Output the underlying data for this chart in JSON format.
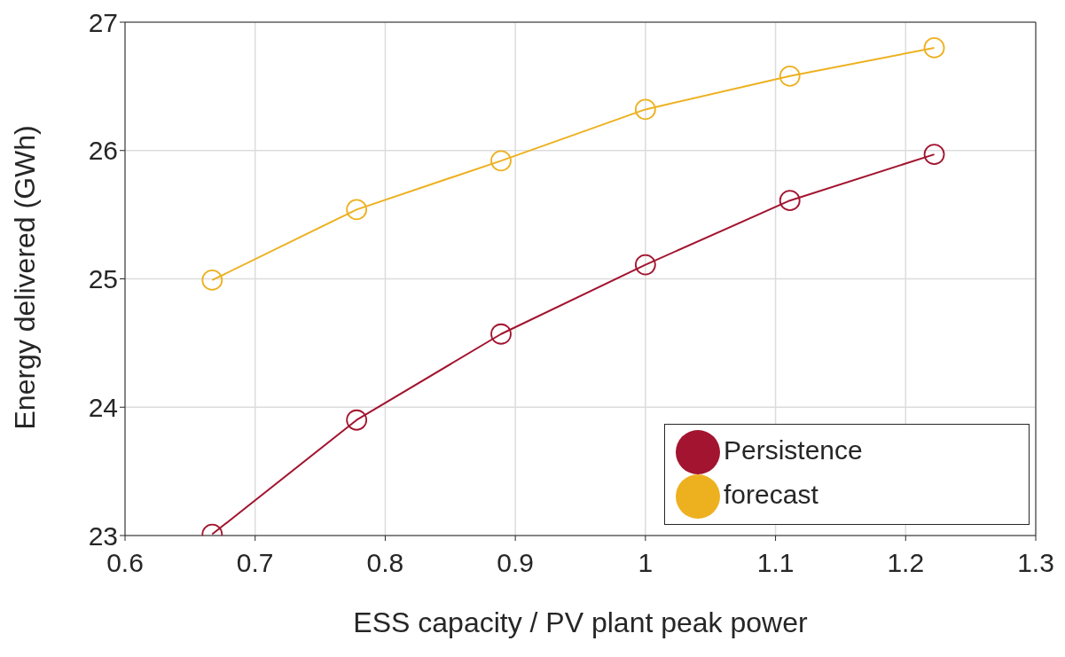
{
  "chart_data": {
    "type": "line",
    "xlabel": "ESS capacity / PV plant peak power",
    "ylabel": "Energy delivered (GWh)",
    "x": [
      0.667,
      0.778,
      0.889,
      1,
      1.111,
      1.222
    ],
    "series": [
      {
        "name": "Persistence",
        "color": "#a2142f",
        "values": [
          23.01,
          23.9,
          24.57,
          25.11,
          25.61,
          25.97
        ]
      },
      {
        "name": "forecast",
        "color": "#edb120",
        "values": [
          24.99,
          25.54,
          25.92,
          26.32,
          26.58,
          26.8
        ]
      }
    ],
    "xlim": [
      0.6,
      1.3
    ],
    "xticks": [
      0.6,
      0.7,
      0.8,
      0.9,
      1,
      1.1,
      1.2,
      1.3
    ],
    "ylim": [
      23,
      27
    ],
    "yticks": [
      23,
      24,
      25,
      26,
      27
    ],
    "grid": true,
    "legend": "bottom right",
    "marker": "circle",
    "line_style": "solid"
  }
}
